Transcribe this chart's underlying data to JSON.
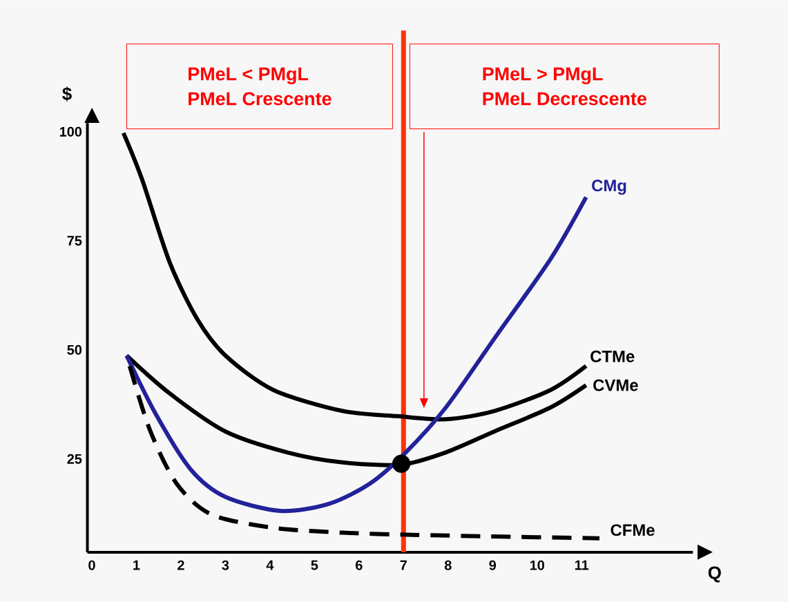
{
  "chart_data": {
    "type": "line",
    "xlabel": "Q",
    "ylabel": "$",
    "xlim": [
      -0.1,
      13.5
    ],
    "ylim": [
      3.6,
      102
    ],
    "xticks": [
      0,
      1,
      2,
      3,
      4,
      5,
      6,
      7,
      8,
      9,
      10,
      11
    ],
    "yticks": [
      25,
      50,
      75,
      100
    ],
    "grid": false,
    "marker": "none",
    "series": [
      {
        "name": "CTMe",
        "color": "#000000",
        "x": [
          0.71,
          1.13,
          1.75,
          2.37,
          3.0,
          4.08,
          5.63,
          6.87,
          7.95,
          9.04,
          10.3,
          11.1
        ],
        "values": [
          99.7,
          89,
          70,
          57,
          48.7,
          40.8,
          36,
          34.8,
          34.1,
          36,
          40.8,
          46.3
        ]
      },
      {
        "name": "CVMe",
        "color": "#000000",
        "x": [
          0.78,
          1.75,
          3.0,
          4.39,
          5.63,
          6.95,
          7.95,
          9.04,
          10.3,
          11.1
        ],
        "values": [
          48.7,
          40,
          31.3,
          26.5,
          24.2,
          23.7,
          26.5,
          31.3,
          36.8,
          41.9
        ]
      },
      {
        "name": "CMg",
        "color": "#22229a",
        "x": [
          0.78,
          1.44,
          2.22,
          3.0,
          4.23,
          5.32,
          6.25,
          7.05,
          7.95,
          9.04,
          10.3,
          11.1
        ],
        "values": [
          48.7,
          35.2,
          22.6,
          16.3,
          13.1,
          14.7,
          19.4,
          26.5,
          36.8,
          52.6,
          70.8,
          85
        ]
      },
      {
        "name": "CFMe",
        "color": "#000000",
        "line_style": "dashed",
        "x": [
          0.78,
          1.29,
          1.9,
          2.68,
          4.08,
          5.63,
          7.18,
          8.73,
          11.4
        ],
        "values": [
          48.7,
          32,
          19.4,
          12.3,
          9.2,
          8.1,
          7.6,
          7.3,
          6.8
        ]
      },
      {
        "type": "scatter",
        "marker": "circle",
        "color": "#000000",
        "x": [
          6.95
        ],
        "values": [
          23.9
        ]
      }
    ],
    "ref_lines": [
      {
        "axis": "x",
        "value": 7,
        "color": "#ff3300"
      }
    ],
    "annotations": [
      "PMeL < PMgL",
      "PMeL Crescente",
      "PMeL > PMgL",
      "PMeL Decrescente"
    ]
  }
}
